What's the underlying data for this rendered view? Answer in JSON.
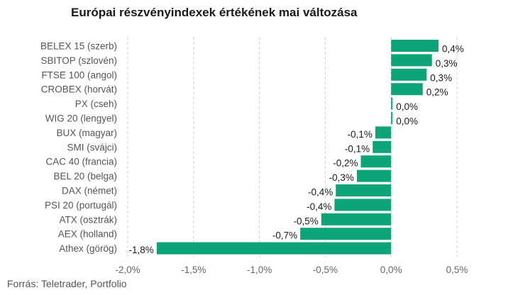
{
  "title": "Európai részvényindexek értékének mai változása",
  "source": "Forrás: Teletrader, Portfolio",
  "colors": {
    "bar": "#0ea47a",
    "grid": "#d0d0d0"
  },
  "chart_data": {
    "type": "bar",
    "orientation": "horizontal",
    "title": "Európai részvényindexek értékének mai változása",
    "categories": [
      "BELEX 15 (szerb)",
      "SBITOP (szlovén)",
      "FTSE 100 (angol)",
      "CROBEX (horvát)",
      "PX (cseh)",
      "WIG 20 (lengyel)",
      "BUX (magyar)",
      "SMI (svájci)",
      "CAC 40 (francia)",
      "BEL 20 (belga)",
      "DAX (német)",
      "PSI 20 (portugál)",
      "ATX (osztrák)",
      "AEX (holland)",
      "Athex (görög)"
    ],
    "values": [
      0.36,
      0.31,
      0.27,
      0.24,
      0.01,
      0.0,
      -0.12,
      -0.14,
      -0.23,
      -0.26,
      -0.42,
      -0.43,
      -0.53,
      -0.69,
      -1.78
    ],
    "value_labels": [
      "0,4%",
      "0,3%",
      "0,3%",
      "0,2%",
      "0,0%",
      "0,0%",
      "-0,1%",
      "-0,1%",
      "-0,2%",
      "-0,3%",
      "-0,4%",
      "-0,4%",
      "-0,5%",
      "-0,7%",
      "-1,8%"
    ],
    "xlim": [
      -2.0,
      0.5
    ],
    "xticks": [
      -2.0,
      -1.5,
      -1.0,
      -0.5,
      0.0,
      0.5
    ],
    "xtick_labels": [
      "-2,0%",
      "-1,5%",
      "-1,0%",
      "-0,5%",
      "0,0%",
      "0,5%"
    ],
    "grid": "vertical dashed",
    "legend": "none"
  }
}
